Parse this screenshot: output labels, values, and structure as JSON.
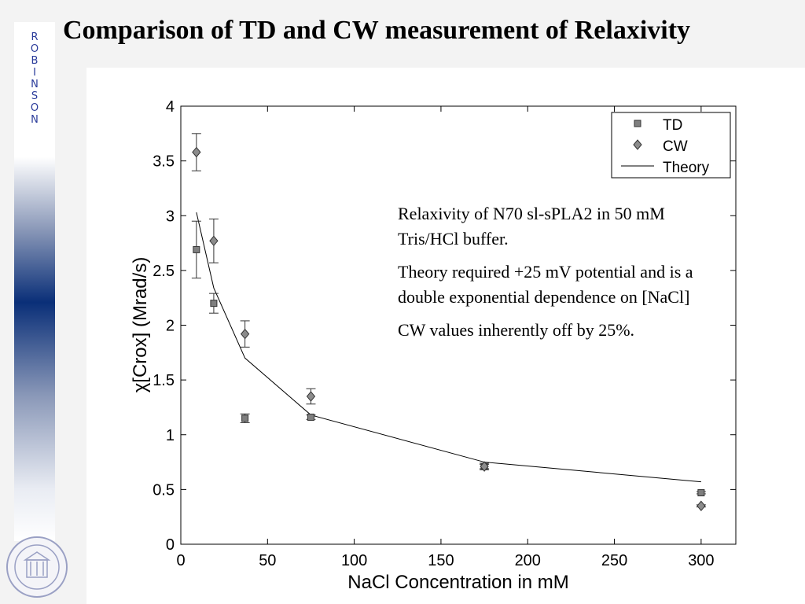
{
  "slide": {
    "title": "Comparison of TD and CW measurement of Relaxivity",
    "side_letters": [
      "R",
      "O",
      "B",
      "I",
      "N",
      "S",
      "O",
      "N"
    ]
  },
  "annotations": [
    "Relaxivity of N70 sl-sPLA2 in 50 mM  Tris/HCl buffer.",
    "Theory required  +25 mV potential and is a double exponential dependence on [NaCl]",
    "CW values inherently off by 25%."
  ],
  "colors": {
    "td_marker": "#7f7f7f",
    "cw_marker": "#8c8c8c",
    "line": "#000000",
    "sidebar_dark": "#0a2f78"
  },
  "chart_data": {
    "type": "scatter",
    "title": "",
    "xlabel": "NaCl Concentration in mM",
    "ylabel": "χ[Crox] (Mrad/s)",
    "xlim": [
      0,
      320
    ],
    "ylim": [
      0,
      4
    ],
    "xticks": [
      0,
      50,
      100,
      150,
      200,
      250,
      300
    ],
    "yticks": [
      0,
      0.5,
      1,
      1.5,
      2,
      2.5,
      3,
      3.5,
      4
    ],
    "legend_position": "top-right",
    "series": [
      {
        "name": "TD",
        "marker": "square",
        "x": [
          9,
          19,
          37,
          75,
          175,
          300
        ],
        "y": [
          2.69,
          2.2,
          1.15,
          1.16,
          0.71,
          0.47
        ],
        "err": [
          0.26,
          0.09,
          0.04,
          0.02,
          0.03,
          0.01
        ]
      },
      {
        "name": "CW",
        "marker": "diamond",
        "x": [
          9,
          19,
          37,
          75,
          175,
          300
        ],
        "y": [
          3.58,
          2.77,
          1.92,
          1.35,
          0.71,
          0.35
        ],
        "err": [
          0.17,
          0.2,
          0.12,
          0.07,
          0.02,
          0.01
        ]
      },
      {
        "name": "Theory",
        "marker": "line",
        "x": [
          9,
          19,
          37,
          75,
          175,
          300
        ],
        "y": [
          3.03,
          2.34,
          1.7,
          1.18,
          0.75,
          0.57
        ]
      }
    ]
  }
}
